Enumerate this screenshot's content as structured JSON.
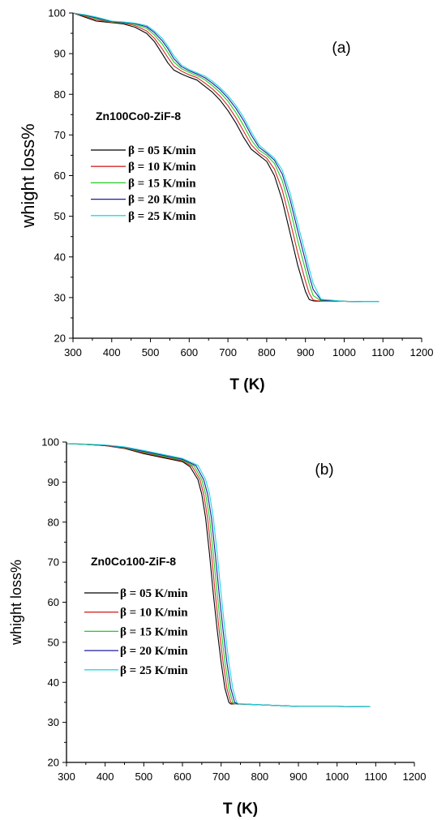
{
  "chart_data": [
    {
      "type": "line",
      "panel_label": "(a)",
      "sample_label": "Zn100Co0-ZiF-8",
      "xlabel": "T (K)",
      "ylabel": "whight loss%",
      "xlim": [
        300,
        1200
      ],
      "ylim": [
        20,
        100
      ],
      "xticks": [
        "300",
        "400",
        "500",
        "600",
        "700",
        "800",
        "900",
        "1000",
        "1100",
        "1200"
      ],
      "yticks": [
        "20",
        "30",
        "40",
        "50",
        "60",
        "70",
        "80",
        "90",
        "100"
      ],
      "grid": false,
      "legend_position": "middle-left",
      "series": [
        {
          "name": "β = 05 K/min",
          "color": "#000000",
          "x": [
            300,
            330,
            360,
            400,
            430,
            460,
            490,
            510,
            530,
            545,
            560,
            580,
            600,
            620,
            640,
            660,
            680,
            700,
            720,
            740,
            760,
            780,
            800,
            820,
            840,
            860,
            880,
            900,
            910,
            920,
            940,
            1000,
            1050,
            1090
          ],
          "y": [
            100,
            99,
            98,
            97.6,
            97.3,
            96.5,
            95,
            93,
            90,
            87.7,
            86,
            85,
            84.2,
            83.5,
            82,
            80.5,
            78.5,
            76,
            73,
            69.5,
            66.5,
            65,
            63.5,
            60,
            54,
            46,
            38,
            31.5,
            29.5,
            29.2,
            29.1,
            29.1,
            29.0,
            29.0
          ]
        },
        {
          "name": "β = 10 K/min",
          "color": "#d42a2a",
          "x": [
            300,
            330,
            360,
            400,
            430,
            460,
            490,
            510,
            530,
            545,
            560,
            580,
            600,
            620,
            640,
            660,
            680,
            700,
            720,
            740,
            760,
            780,
            800,
            820,
            840,
            860,
            880,
            900,
            910,
            920,
            940,
            1000,
            1050,
            1090
          ],
          "y": [
            100,
            99.2,
            98.3,
            97.7,
            97.5,
            96.9,
            95.6,
            93.8,
            91.2,
            89,
            87,
            85.7,
            84.8,
            84.1,
            82.8,
            81.3,
            79.5,
            77.2,
            74.3,
            71,
            67.6,
            65.6,
            64.3,
            61.6,
            56.5,
            49,
            41,
            34,
            31,
            29.4,
            29.1,
            29.1,
            29.0,
            29.0
          ]
        },
        {
          "name": "β = 15 K/min",
          "color": "#22cc22",
          "x": [
            300,
            330,
            360,
            400,
            430,
            460,
            490,
            510,
            530,
            545,
            560,
            580,
            600,
            620,
            640,
            660,
            680,
            700,
            720,
            740,
            760,
            780,
            800,
            820,
            840,
            860,
            880,
            900,
            910,
            920,
            940,
            1000,
            1050,
            1090
          ],
          "y": [
            100,
            99.4,
            98.6,
            97.8,
            97.6,
            97.2,
            96.2,
            94.6,
            92.4,
            90.2,
            88,
            86.3,
            85.4,
            84.6,
            83.6,
            82.1,
            80.4,
            78.3,
            75.6,
            72.4,
            68.8,
            66.3,
            65,
            63,
            58.8,
            52,
            44,
            36.8,
            33.3,
            30.5,
            29.2,
            29.1,
            29.0,
            29.0
          ]
        },
        {
          "name": "β = 20 K/min",
          "color": "#1c1c9c",
          "x": [
            300,
            330,
            360,
            400,
            430,
            460,
            490,
            510,
            530,
            545,
            560,
            580,
            600,
            620,
            640,
            660,
            680,
            700,
            720,
            740,
            760,
            780,
            800,
            820,
            840,
            860,
            880,
            900,
            910,
            920,
            940,
            1000,
            1050,
            1090
          ],
          "y": [
            100,
            99.5,
            98.8,
            97.9,
            97.7,
            97.4,
            96.6,
            95.2,
            93.2,
            91.2,
            88.8,
            86.8,
            85.8,
            85,
            84.1,
            82.7,
            81.1,
            79.1,
            76.6,
            73.6,
            70,
            67,
            65.5,
            63.8,
            60.4,
            54.2,
            46.5,
            39,
            35.3,
            32,
            29.4,
            29.1,
            29.0,
            29.0
          ]
        },
        {
          "name": "β = 25 K/min",
          "color": "#22d8e0",
          "x": [
            300,
            330,
            360,
            400,
            430,
            460,
            490,
            510,
            530,
            545,
            560,
            580,
            600,
            620,
            640,
            660,
            680,
            700,
            720,
            740,
            760,
            780,
            800,
            820,
            840,
            860,
            880,
            900,
            910,
            920,
            940,
            1000,
            1050,
            1090
          ],
          "y": [
            100,
            99.6,
            99,
            98,
            97.8,
            97.5,
            96.9,
            95.6,
            93.8,
            91.8,
            89.5,
            87.2,
            86.1,
            85.3,
            84.5,
            83.2,
            81.6,
            79.7,
            77.3,
            74.4,
            70.8,
            67.6,
            65.9,
            64.3,
            61.4,
            55.8,
            48.2,
            40.8,
            37,
            33.5,
            29.6,
            29.1,
            29.0,
            29.0
          ]
        }
      ]
    },
    {
      "type": "line",
      "panel_label": "(b)",
      "sample_label": "Zn0Co100-ZiF-8",
      "xlabel": "T (K)",
      "ylabel": "whight loss%",
      "xlim": [
        300,
        1200
      ],
      "ylim": [
        20,
        100
      ],
      "xticks": [
        "300",
        "400",
        "500",
        "600",
        "700",
        "800",
        "900",
        "1000",
        "1100",
        "1200"
      ],
      "yticks": [
        "20",
        "30",
        "40",
        "50",
        "60",
        "70",
        "80",
        "90",
        "100"
      ],
      "grid": false,
      "legend_position": "middle-left",
      "series": [
        {
          "name": "β = 05 K/min",
          "color": "#000000",
          "x": [
            300,
            350,
            400,
            450,
            500,
            550,
            600,
            620,
            640,
            650,
            660,
            670,
            680,
            690,
            700,
            710,
            720,
            725,
            740,
            800,
            900,
            1000,
            1085
          ],
          "y": [
            99.6,
            99.4,
            99.1,
            98.4,
            97.1,
            96.1,
            95.1,
            93.8,
            90.6,
            87,
            81,
            72,
            62,
            53,
            45,
            38.5,
            35,
            34.6,
            34.6,
            34.4,
            34.0,
            34.0,
            33.9
          ]
        },
        {
          "name": "β = 10 K/min",
          "color": "#d42a2a",
          "x": [
            300,
            350,
            400,
            450,
            500,
            550,
            600,
            625,
            645,
            655,
            665,
            675,
            685,
            695,
            705,
            715,
            725,
            732,
            745,
            800,
            900,
            1000,
            1085
          ],
          "y": [
            99.6,
            99.4,
            99.1,
            98.5,
            97.3,
            96.3,
            95.3,
            93.9,
            90.6,
            87,
            81,
            72,
            62,
            53,
            45,
            38.5,
            35,
            34.6,
            34.6,
            34.4,
            34.0,
            34.0,
            33.9
          ]
        },
        {
          "name": "β = 15 K/min",
          "color": "#22cc22",
          "x": [
            300,
            350,
            400,
            450,
            500,
            550,
            600,
            630,
            650,
            660,
            670,
            680,
            690,
            700,
            710,
            720,
            730,
            738,
            750,
            800,
            900,
            1000,
            1085
          ],
          "y": [
            99.6,
            99.4,
            99.2,
            98.6,
            97.5,
            96.5,
            95.5,
            94,
            90.6,
            87,
            81,
            72,
            62,
            53,
            45,
            38.5,
            35,
            34.6,
            34.6,
            34.4,
            34.0,
            34.0,
            33.9
          ]
        },
        {
          "name": "β = 20 K/min",
          "color": "#1c1c9c",
          "x": [
            300,
            350,
            400,
            450,
            500,
            550,
            600,
            635,
            655,
            665,
            675,
            685,
            695,
            705,
            715,
            725,
            735,
            742,
            755,
            800,
            900,
            1000,
            1085
          ],
          "y": [
            99.6,
            99.5,
            99.2,
            98.7,
            97.7,
            96.7,
            95.7,
            94.1,
            90.6,
            87,
            81,
            72,
            62,
            53,
            45,
            38.5,
            35,
            34.6,
            34.6,
            34.4,
            34.0,
            34.0,
            33.9
          ]
        },
        {
          "name": "β = 25 K/min",
          "color": "#22d8e0",
          "x": [
            300,
            350,
            400,
            450,
            500,
            550,
            600,
            640,
            660,
            670,
            680,
            690,
            700,
            710,
            720,
            730,
            740,
            746,
            760,
            800,
            900,
            1000,
            1085
          ],
          "y": [
            99.6,
            99.5,
            99.3,
            98.8,
            97.9,
            96.9,
            95.9,
            94.2,
            90.6,
            87,
            81,
            72,
            62,
            53,
            45,
            38.5,
            35,
            34.6,
            34.6,
            34.4,
            34.0,
            34.0,
            33.9
          ]
        }
      ]
    }
  ]
}
